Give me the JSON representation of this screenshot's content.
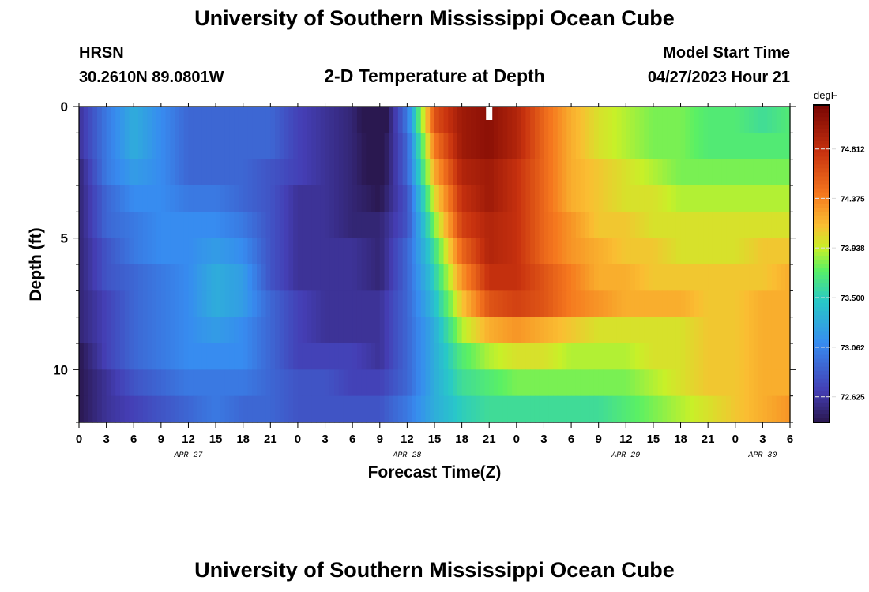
{
  "header": {
    "title": "University of Southern Mississippi Ocean Cube",
    "station": "HRSN",
    "coords": "30.2610N  89.0801W",
    "plot_title": "2-D Temperature at Depth",
    "model_start_label": "Model Start Time",
    "model_start_value": "04/27/2023 Hour 21"
  },
  "footer": {
    "title": "University of Southern Mississippi Ocean Cube"
  },
  "chart_data": {
    "type": "heatmap",
    "title": "2-D Temperature at Depth",
    "xlabel": "Forecast Time(Z)",
    "ylabel": "Depth (ft)",
    "colorbar_unit": "degF",
    "colorbar_ticks": [
      72.625,
      73.062,
      73.5,
      73.938,
      74.375,
      74.812
    ],
    "color_range": [
      72.4,
      75.2
    ],
    "x_hours_range": [
      0,
      78
    ],
    "x_tick_labels": [
      "0",
      "3",
      "6",
      "9",
      "12",
      "15",
      "18",
      "21",
      "0",
      "3",
      "6",
      "9",
      "12",
      "15",
      "18",
      "21",
      "0",
      "3",
      "6",
      "9",
      "12",
      "15",
      "18",
      "21",
      "0",
      "3",
      "6"
    ],
    "date_labels": [
      {
        "label": "APR 27",
        "hour": 12
      },
      {
        "label": "APR 28",
        "hour": 36
      },
      {
        "label": "APR 29",
        "hour": 60
      },
      {
        "label": "APR 30",
        "hour": 75
      }
    ],
    "y_range": [
      0,
      12
    ],
    "y_tick_labels": [
      0,
      5,
      10
    ],
    "depths_ft": [
      0.5,
      1.5,
      2.5,
      3.5,
      4.5,
      5.5,
      6.5,
      7.5,
      8.5,
      9.5,
      10.5,
      11.5
    ],
    "model_start_marker_hour": 45,
    "time_columns_hours": [
      0,
      3,
      6,
      9,
      12,
      15,
      18,
      21,
      24,
      27,
      30,
      33,
      36,
      39,
      42,
      45,
      48,
      51,
      54,
      57,
      60,
      63,
      66,
      69,
      72,
      75,
      78
    ],
    "values": [
      [
        72.6,
        73.0,
        73.3,
        73.1,
        72.9,
        72.9,
        72.9,
        72.9,
        72.7,
        72.6,
        72.5,
        72.2,
        73.0,
        74.6,
        75.0,
        75.1,
        74.9,
        74.5,
        74.2,
        74.0,
        73.9,
        73.8,
        73.8,
        73.7,
        73.7,
        73.6,
        73.7
      ],
      [
        72.6,
        73.0,
        73.3,
        73.1,
        72.9,
        72.9,
        72.9,
        72.9,
        72.7,
        72.6,
        72.5,
        72.3,
        72.9,
        74.4,
        75.0,
        75.1,
        74.9,
        74.5,
        74.2,
        74.0,
        73.9,
        73.8,
        73.8,
        73.7,
        73.7,
        73.7,
        73.7
      ],
      [
        72.5,
        73.0,
        73.2,
        73.1,
        72.9,
        72.9,
        72.9,
        72.8,
        72.7,
        72.6,
        72.5,
        72.3,
        72.9,
        74.2,
        74.9,
        75.0,
        74.8,
        74.5,
        74.2,
        74.1,
        74.0,
        73.9,
        73.8,
        73.8,
        73.8,
        73.8,
        73.8
      ],
      [
        72.5,
        72.9,
        73.1,
        73.1,
        73.0,
        73.0,
        72.9,
        72.8,
        72.6,
        72.6,
        72.5,
        72.4,
        72.8,
        74.0,
        74.8,
        75.0,
        74.8,
        74.5,
        74.2,
        74.1,
        74.0,
        74.0,
        73.9,
        73.9,
        73.9,
        73.9,
        73.9
      ],
      [
        72.5,
        72.9,
        73.0,
        73.1,
        73.1,
        73.1,
        73.0,
        72.8,
        72.6,
        72.6,
        72.5,
        72.5,
        72.8,
        73.8,
        74.7,
        74.9,
        74.8,
        74.5,
        74.3,
        74.1,
        74.1,
        74.0,
        74.0,
        74.0,
        74.0,
        74.0,
        74.0
      ],
      [
        72.5,
        72.8,
        73.0,
        73.1,
        73.1,
        73.2,
        73.1,
        72.8,
        72.6,
        72.6,
        72.6,
        72.5,
        72.9,
        73.6,
        74.5,
        74.9,
        74.8,
        74.5,
        74.3,
        74.2,
        74.1,
        74.1,
        74.0,
        74.0,
        74.0,
        74.1,
        74.1
      ],
      [
        72.5,
        72.8,
        72.9,
        73.0,
        73.1,
        73.3,
        73.2,
        72.8,
        72.6,
        72.6,
        72.6,
        72.5,
        72.9,
        73.5,
        74.3,
        74.8,
        74.8,
        74.6,
        74.4,
        74.2,
        74.2,
        74.1,
        74.1,
        74.1,
        74.1,
        74.1,
        74.2
      ],
      [
        72.5,
        72.7,
        72.9,
        73.0,
        73.1,
        73.3,
        73.2,
        72.9,
        72.7,
        72.6,
        72.6,
        72.6,
        72.9,
        73.4,
        74.1,
        74.6,
        74.7,
        74.6,
        74.4,
        74.3,
        74.2,
        74.2,
        74.2,
        74.1,
        74.1,
        74.2,
        74.2
      ],
      [
        72.5,
        72.7,
        72.9,
        73.0,
        73.1,
        73.2,
        73.1,
        72.9,
        72.7,
        72.6,
        72.6,
        72.6,
        72.9,
        73.3,
        73.9,
        74.2,
        74.3,
        74.2,
        74.1,
        74.0,
        74.0,
        74.0,
        74.0,
        74.1,
        74.1,
        74.2,
        74.2
      ],
      [
        72.4,
        72.7,
        72.9,
        73.0,
        73.1,
        73.1,
        73.1,
        72.9,
        72.7,
        72.7,
        72.7,
        72.6,
        72.9,
        73.3,
        73.7,
        73.9,
        74.0,
        74.0,
        73.9,
        73.9,
        73.9,
        74.0,
        74.0,
        74.1,
        74.1,
        74.2,
        74.2
      ],
      [
        72.4,
        72.6,
        72.8,
        72.9,
        73.0,
        73.0,
        73.0,
        72.9,
        72.8,
        72.8,
        72.7,
        72.7,
        72.9,
        73.3,
        73.6,
        73.7,
        73.8,
        73.8,
        73.8,
        73.8,
        73.8,
        73.9,
        74.0,
        74.1,
        74.1,
        74.2,
        74.2
      ],
      [
        72.4,
        72.6,
        72.7,
        72.8,
        72.9,
        73.0,
        72.9,
        72.9,
        72.8,
        72.8,
        72.8,
        72.8,
        73.0,
        73.3,
        73.5,
        73.6,
        73.6,
        73.6,
        73.6,
        73.6,
        73.7,
        73.8,
        73.9,
        74.0,
        74.1,
        74.2,
        74.3
      ]
    ]
  }
}
